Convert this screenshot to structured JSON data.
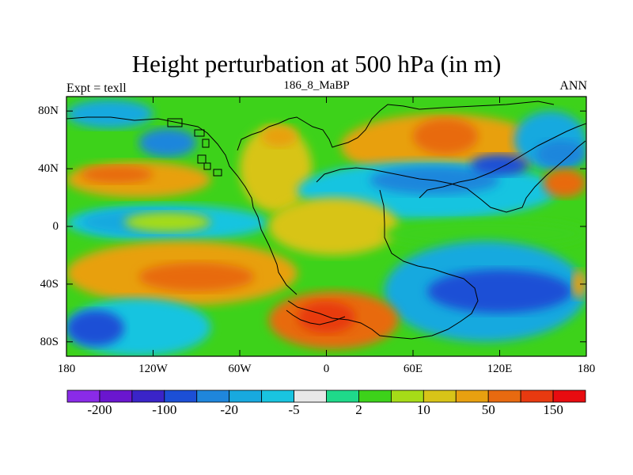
{
  "chart_data": {
    "type": "heatmap",
    "title": "Height perturbation at 500 hPa (in m)",
    "subtitle": "186_8_MaBP",
    "left_label": "Expt = texll",
    "right_label": "ANN",
    "xlim": [
      -180,
      180
    ],
    "ylim": [
      -90,
      90
    ],
    "x_ticks": [
      {
        "value": -180,
        "label": "180"
      },
      {
        "value": -120,
        "label": "120W"
      },
      {
        "value": -60,
        "label": "60W"
      },
      {
        "value": 0,
        "label": "0"
      },
      {
        "value": 60,
        "label": "60E"
      },
      {
        "value": 120,
        "label": "120E"
      },
      {
        "value": 180,
        "label": "180"
      }
    ],
    "y_ticks": [
      {
        "value": 80,
        "label": "80N"
      },
      {
        "value": 40,
        "label": "40N"
      },
      {
        "value": 0,
        "label": "0"
      },
      {
        "value": -40,
        "label": "40S"
      },
      {
        "value": -80,
        "label": "80S"
      }
    ],
    "colorbar": {
      "colors": [
        "#8a2be8",
        "#6a16cf",
        "#3a24c8",
        "#1c4fd6",
        "#1f86dc",
        "#18a9df",
        "#19c4e0",
        "#e8e8e8",
        "#1fd98a",
        "#3dd21a",
        "#a6dc18",
        "#d8c418",
        "#e8a010",
        "#e86a10",
        "#e83a10",
        "#e80c10"
      ],
      "tick_labels": [
        {
          "index": 1,
          "label": "-200"
        },
        {
          "index": 3,
          "label": "-100"
        },
        {
          "index": 5,
          "label": "-20"
        },
        {
          "index": 7,
          "label": "-5"
        },
        {
          "index": 9,
          "label": "2"
        },
        {
          "index": 11,
          "label": "10"
        },
        {
          "index": 13,
          "label": "50"
        },
        {
          "index": 15,
          "label": "150"
        }
      ]
    },
    "field": [
      {
        "lon": -180,
        "lat": 90,
        "dlon": 360,
        "dlat": 180,
        "level": 9
      },
      {
        "lon": -180,
        "lat": 88,
        "dlon": 60,
        "dlat": 20,
        "level": 5
      },
      {
        "lon": -130,
        "lat": 68,
        "dlon": 40,
        "dlat": 20,
        "level": 4
      },
      {
        "lon": -180,
        "lat": 45,
        "dlon": 100,
        "dlat": 25,
        "level": 12
      },
      {
        "lon": -170,
        "lat": 42,
        "dlon": 50,
        "dlat": 12,
        "level": 13
      },
      {
        "lon": -60,
        "lat": 70,
        "dlon": 50,
        "dlat": 60,
        "level": 11
      },
      {
        "lon": -45,
        "lat": 70,
        "dlon": 25,
        "dlat": 15,
        "level": 12
      },
      {
        "lon": 10,
        "lat": 78,
        "dlon": 140,
        "dlat": 45,
        "level": 12
      },
      {
        "lon": 60,
        "lat": 75,
        "dlon": 45,
        "dlat": 25,
        "level": 13
      },
      {
        "lon": 130,
        "lat": 80,
        "dlon": 50,
        "dlat": 40,
        "level": 5
      },
      {
        "lon": 145,
        "lat": 60,
        "dlon": 35,
        "dlat": 20,
        "level": 4
      },
      {
        "lon": -20,
        "lat": 45,
        "dlon": 180,
        "dlat": 40,
        "level": 6
      },
      {
        "lon": 30,
        "lat": 42,
        "dlon": 90,
        "dlat": 20,
        "level": 4
      },
      {
        "lon": 100,
        "lat": 50,
        "dlon": 40,
        "dlat": 15,
        "level": 3
      },
      {
        "lon": 150,
        "lat": 40,
        "dlon": 30,
        "dlat": 20,
        "level": 13
      },
      {
        "lon": -180,
        "lat": 15,
        "dlon": 140,
        "dlat": 25,
        "level": 6
      },
      {
        "lon": -170,
        "lat": 12,
        "dlon": 90,
        "dlat": 18,
        "level": 5
      },
      {
        "lon": -140,
        "lat": 10,
        "dlon": 60,
        "dlat": 14,
        "level": 10
      },
      {
        "lon": -40,
        "lat": 20,
        "dlon": 90,
        "dlat": 40,
        "level": 11
      },
      {
        "lon": 40,
        "lat": 5,
        "dlon": 140,
        "dlat": 20,
        "level": 9
      },
      {
        "lon": -180,
        "lat": -10,
        "dlon": 160,
        "dlat": 45,
        "level": 12
      },
      {
        "lon": -130,
        "lat": -25,
        "dlon": 80,
        "dlat": 20,
        "level": 13
      },
      {
        "lon": 40,
        "lat": -10,
        "dlon": 140,
        "dlat": 70,
        "level": 5
      },
      {
        "lon": 70,
        "lat": -30,
        "dlon": 100,
        "dlat": 30,
        "level": 3
      },
      {
        "lon": -180,
        "lat": -50,
        "dlon": 100,
        "dlat": 40,
        "level": 6
      },
      {
        "lon": -180,
        "lat": -58,
        "dlon": 40,
        "dlat": 25,
        "level": 3
      },
      {
        "lon": -40,
        "lat": -45,
        "dlon": 90,
        "dlat": 40,
        "level": 13
      },
      {
        "lon": -20,
        "lat": -52,
        "dlon": 40,
        "dlat": 22,
        "level": 14
      },
      {
        "lon": 170,
        "lat": -30,
        "dlon": 10,
        "dlat": 20,
        "level": 12
      }
    ],
    "coastline_note": "schematic paleogeographic coastlines"
  }
}
